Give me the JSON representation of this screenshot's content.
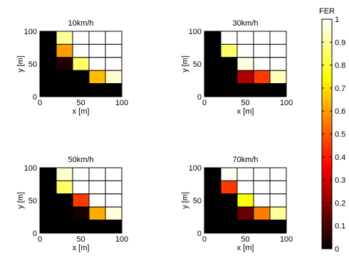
{
  "chart_data": {
    "type": "heatmap",
    "colormap": "hot",
    "x": [
      10,
      30,
      50,
      70,
      90
    ],
    "y": [
      10,
      30,
      50,
      70,
      90
    ],
    "cell_size": 20,
    "xlim": [
      0,
      100
    ],
    "ylim": [
      0,
      100
    ],
    "xticks": [
      "0",
      "50",
      "100"
    ],
    "yticks": [
      "0",
      "50",
      "100"
    ],
    "grid": true,
    "panels": [
      {
        "title": "10km/h",
        "xlabel": "x [m]",
        "ylabel": "y [m]",
        "rows_top_to_bottom": [
          [
            0.0,
            0.9,
            1.0,
            1.0,
            1.0
          ],
          [
            0.0,
            0.6,
            1.0,
            1.0,
            1.0
          ],
          [
            0.0,
            0.05,
            0.85,
            1.0,
            1.0
          ],
          [
            0.0,
            0.0,
            0.0,
            0.65,
            0.95
          ],
          [
            0.0,
            0.0,
            0.0,
            0.0,
            0.0
          ]
        ]
      },
      {
        "title": "30km/h",
        "xlabel": "x [m]",
        "ylabel": "y [m]",
        "rows_top_to_bottom": [
          [
            0.0,
            1.0,
            1.0,
            1.0,
            1.0
          ],
          [
            0.0,
            0.85,
            1.0,
            1.0,
            1.0
          ],
          [
            0.0,
            0.0,
            0.97,
            1.0,
            1.0
          ],
          [
            0.0,
            0.0,
            0.25,
            0.45,
            0.93
          ],
          [
            0.0,
            0.0,
            0.0,
            0.0,
            0.0
          ]
        ]
      },
      {
        "title": "50km/h",
        "xlabel": "x [m]",
        "ylabel": "y [m]",
        "rows_top_to_bottom": [
          [
            0.0,
            0.95,
            1.0,
            1.0,
            1.0
          ],
          [
            0.0,
            0.85,
            1.0,
            1.0,
            1.0
          ],
          [
            0.0,
            0.0,
            0.45,
            1.0,
            1.0
          ],
          [
            0.0,
            0.0,
            0.03,
            0.62,
            0.96
          ],
          [
            0.0,
            0.0,
            0.0,
            0.0,
            0.0
          ]
        ]
      },
      {
        "title": "70km/h",
        "xlabel": "x [m]",
        "ylabel": "y [m]",
        "rows_top_to_bottom": [
          [
            0.0,
            0.99,
            1.0,
            1.0,
            1.0
          ],
          [
            0.0,
            0.45,
            1.0,
            1.0,
            1.0
          ],
          [
            0.0,
            0.0,
            0.75,
            1.0,
            1.0
          ],
          [
            0.0,
            0.0,
            0.15,
            0.55,
            0.9
          ],
          [
            0.0,
            0.0,
            0.0,
            0.0,
            0.0
          ]
        ]
      }
    ],
    "colorbar": {
      "label": "FER",
      "range": [
        0,
        1
      ],
      "ticks": [
        "0",
        "0.1",
        "0.2",
        "0.3",
        "0.4",
        "0.5",
        "0.6",
        "0.7",
        "0.8",
        "0.9",
        "1"
      ]
    }
  }
}
